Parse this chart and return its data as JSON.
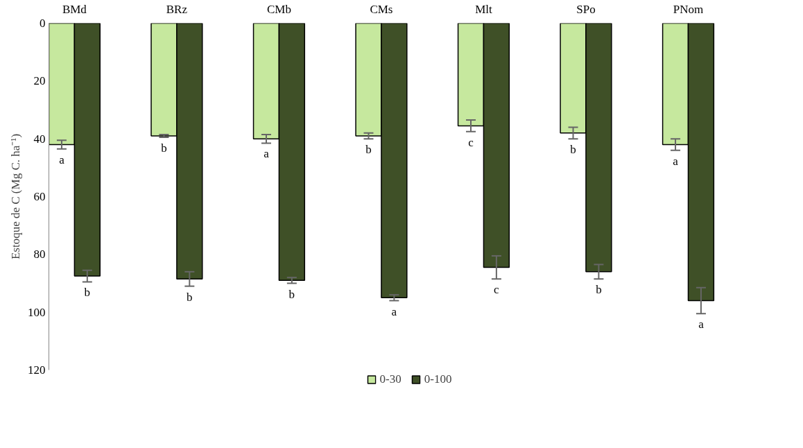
{
  "chart_data": {
    "type": "bar",
    "ylabel": "Estoque de C (Mg C. ha⁻¹)",
    "categories": [
      "BMd",
      "BRz",
      "CMb",
      "CMs",
      "Mlt",
      "SPo",
      "PNom"
    ],
    "series": [
      {
        "name": "0-30",
        "color": "#c6e89e",
        "values": [
          42,
          39,
          40,
          39,
          35.5,
          38,
          42
        ],
        "errors": [
          1.5,
          0.5,
          1.5,
          1,
          2,
          2,
          2
        ],
        "value_labels": [
          "a",
          "b",
          "a",
          "b",
          "c",
          "b",
          "a"
        ]
      },
      {
        "name": "0-100",
        "color": "#3f5027",
        "values": [
          87.5,
          88.5,
          89,
          95,
          84.5,
          86,
          96
        ],
        "errors": [
          2,
          2.5,
          1,
          1,
          4,
          2.5,
          4.5
        ],
        "value_labels": [
          "b",
          "b",
          "b",
          "a",
          "c",
          "b",
          "a"
        ]
      }
    ],
    "ylim": [
      120,
      0
    ],
    "yticks": [
      0,
      20,
      40,
      60,
      80,
      100,
      120
    ],
    "grid": false,
    "legend": "bottom"
  }
}
